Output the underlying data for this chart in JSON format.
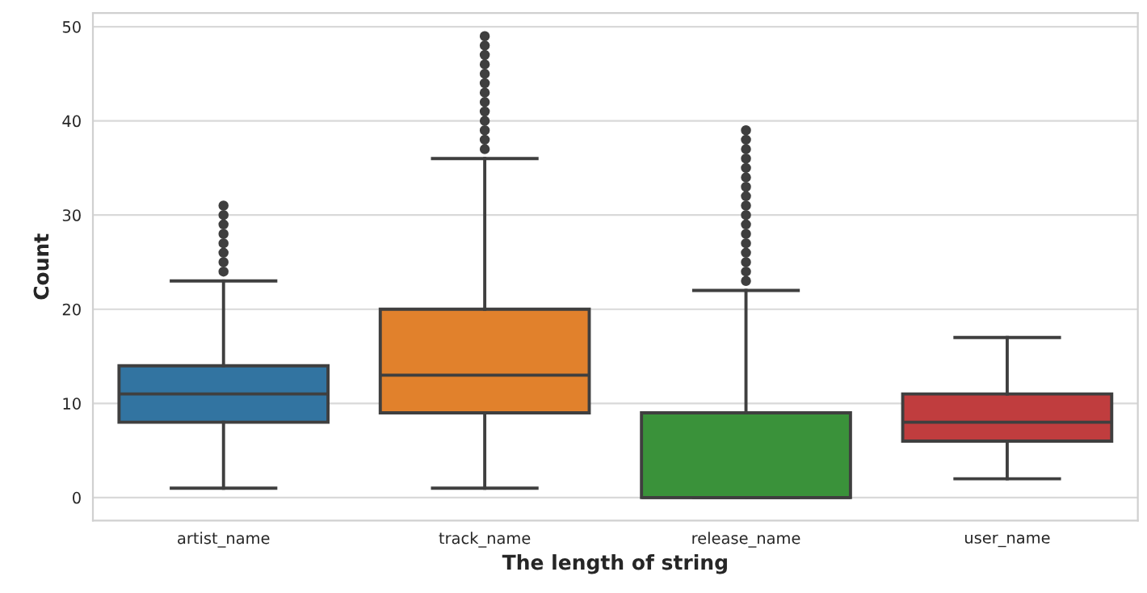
{
  "chart_data": {
    "type": "box",
    "xlabel": "The length of string",
    "ylabel": "Count",
    "categories": [
      "artist_name",
      "track_name",
      "release_name",
      "user_name"
    ],
    "colors": [
      "#3274a1",
      "#e1812c",
      "#3a923a",
      "#c03d3e"
    ],
    "boxes": [
      {
        "low": 1,
        "q1": 8,
        "median": 11,
        "q3": 14,
        "high": 23,
        "outliers": [
          24,
          25,
          26,
          27,
          28,
          29,
          30,
          31
        ]
      },
      {
        "low": 1,
        "q1": 9,
        "median": 13,
        "q3": 20,
        "high": 36,
        "outliers": [
          37,
          38,
          39,
          40,
          41,
          42,
          43,
          44,
          45,
          46,
          47,
          48,
          49
        ]
      },
      {
        "low": 0,
        "q1": 0,
        "median": 0,
        "q3": 9,
        "high": 22,
        "outliers": [
          23,
          24,
          25,
          26,
          27,
          28,
          29,
          30,
          31,
          32,
          33,
          34,
          35,
          36,
          37,
          38,
          39
        ]
      },
      {
        "low": 2,
        "q1": 6,
        "median": 8,
        "q3": 11,
        "high": 17
      }
    ],
    "ylim": [
      -2.45,
      51.45
    ],
    "yticks": [
      0,
      10,
      20,
      30,
      40,
      50
    ],
    "grid": "y"
  }
}
